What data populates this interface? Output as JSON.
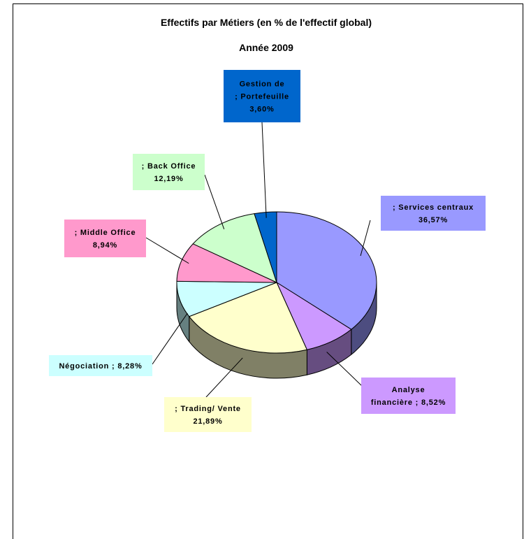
{
  "chart_data": {
    "type": "pie",
    "title": "Effectifs par Métiers (en % de l'effectif global)",
    "subtitle": "Année 2009",
    "three_d": true,
    "slices": [
      {
        "label": "; Services centraux",
        "value": 36.57,
        "display": "36,57%",
        "color": "#9999ff",
        "lines": [
          "; Services centraux",
          "36,57%"
        ]
      },
      {
        "label": "Analyse financière",
        "value": 8.52,
        "display": "8,52%",
        "color": "#cc99ff",
        "lines": [
          "Analyse",
          "financière ; 8,52%"
        ]
      },
      {
        "label": "; Trading/ Vente",
        "value": 21.89,
        "display": "21,89%",
        "color": "#ffffcc",
        "lines": [
          "; Trading/ Vente",
          "21,89%"
        ]
      },
      {
        "label": "Négociation",
        "value": 8.28,
        "display": "8,28%",
        "color": "#ccffff",
        "lines": [
          "Négociation ; 8,28%"
        ]
      },
      {
        "label": "; Middle Office",
        "value": 8.94,
        "display": "8,94%",
        "color": "#ff99cc",
        "lines": [
          "; Middle Office",
          "8,94%"
        ]
      },
      {
        "label": "; Back Office",
        "value": 12.19,
        "display": "12,19%",
        "color": "#ccffcc",
        "lines": [
          "; Back Office",
          "12,19%"
        ]
      },
      {
        "label": "Gestion de ; Portefeuille",
        "value": 3.6,
        "display": "3,60%",
        "color": "#0066cc",
        "lines": [
          "Gestion de",
          "; Portefeuille",
          "3,60%"
        ]
      }
    ]
  }
}
